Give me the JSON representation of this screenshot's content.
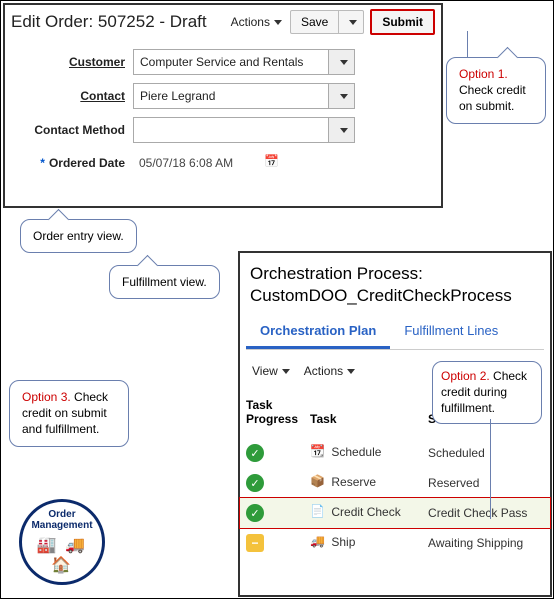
{
  "order_panel": {
    "title": "Edit Order: 507252 - Draft",
    "actions_label": "Actions",
    "save_label": "Save",
    "submit_label": "Submit",
    "fields": {
      "customer": {
        "label": "Customer",
        "value": "Computer Service and Rentals"
      },
      "contact": {
        "label": "Contact",
        "value": "Piere Legrand"
      },
      "contact_method": {
        "label": "Contact Method",
        "value": ""
      },
      "ordered_date": {
        "label": "Ordered Date",
        "value": "05/07/18 6:08 AM"
      }
    }
  },
  "callouts": {
    "option1": {
      "red": "Option 1.",
      "text": " Check credit on submit."
    },
    "order_entry_view": {
      "text": "Order entry view."
    },
    "fulfillment_view": {
      "text": "Fulfillment view."
    },
    "option3": {
      "red": "Option 3.",
      "text": " Check credit on submit and fulfillment."
    },
    "option2": {
      "red": "Option 2.",
      "text": " Check credit during fulfillment."
    }
  },
  "orchestration": {
    "title_prefix": "Orchestration Process:",
    "title_name": "CustomDOO_CreditCheckProcess",
    "tabs": {
      "plan": "Orchestration Plan",
      "lines": "Fulfillment Lines"
    },
    "view_label": "View",
    "actions_label": "Actions",
    "columns": {
      "progress": "Task Progress",
      "task": "Task",
      "status": "Status"
    },
    "rows": [
      {
        "progress": "done",
        "icon": "schedule",
        "task": "Schedule",
        "status": "Scheduled",
        "hl": false
      },
      {
        "progress": "done",
        "icon": "reserve",
        "task": "Reserve",
        "status": "Reserved",
        "hl": false
      },
      {
        "progress": "done",
        "icon": "credit",
        "task": "Credit Check",
        "status": "Credit Check Pass",
        "hl": true
      },
      {
        "progress": "wait",
        "icon": "ship",
        "task": "Ship",
        "status": "Awaiting Shipping",
        "hl": false
      }
    ]
  },
  "badge": {
    "line1": "Order",
    "line2": "Management"
  }
}
